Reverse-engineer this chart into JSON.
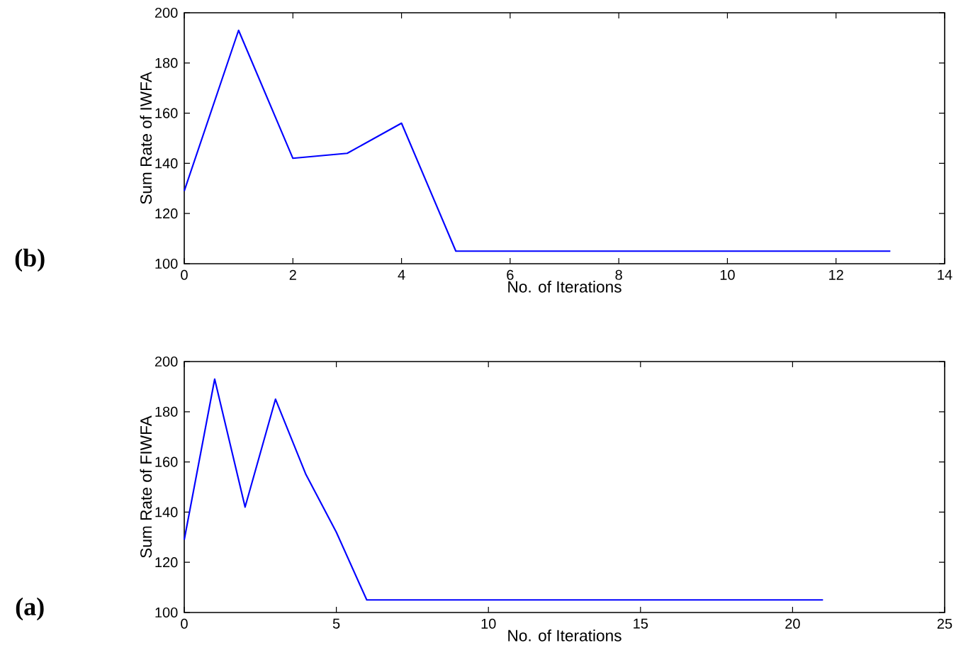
{
  "chart_data": [
    {
      "type": "line",
      "xlabel": "No. of Iterations",
      "ylabel": "Sum Rate of IWFA",
      "annotations": [
        "(b)"
      ],
      "x": [
        0,
        1,
        2,
        3,
        4,
        5,
        6,
        7,
        8,
        9,
        10,
        11,
        12,
        13
      ],
      "series": [
        {
          "color": "#0000ff",
          "values": [
            129,
            193,
            142,
            144,
            156,
            105,
            105,
            105,
            105,
            105,
            105,
            105,
            105,
            105
          ]
        }
      ],
      "xlim": [
        0,
        14
      ],
      "xticks": [
        0,
        2,
        4,
        6,
        8,
        10,
        12,
        14
      ],
      "ylim": [
        100,
        200
      ],
      "yticks": [
        100,
        120,
        140,
        160,
        180,
        200
      ],
      "grid": false
    },
    {
      "type": "line",
      "xlabel": "No. of Iterations",
      "ylabel": "Sum Rate of FIWFA",
      "annotations": [
        "(a)"
      ],
      "x": [
        0,
        1,
        2,
        3,
        4,
        5,
        6,
        7,
        8,
        9,
        10,
        11,
        12,
        13,
        14,
        15,
        16,
        17,
        18,
        19,
        20,
        21
      ],
      "series": [
        {
          "color": "#0000ff",
          "values": [
            129,
            193,
            142,
            185,
            155,
            132,
            105,
            105,
            105,
            105,
            105,
            105,
            105,
            105,
            105,
            105,
            105,
            105,
            105,
            105,
            105,
            105
          ]
        }
      ],
      "xlim": [
        0,
        25
      ],
      "xticks": [
        0,
        5,
        10,
        15,
        20,
        25
      ],
      "ylim": [
        100,
        200
      ],
      "yticks": [
        100,
        120,
        140,
        160,
        180,
        200
      ],
      "grid": false
    }
  ]
}
